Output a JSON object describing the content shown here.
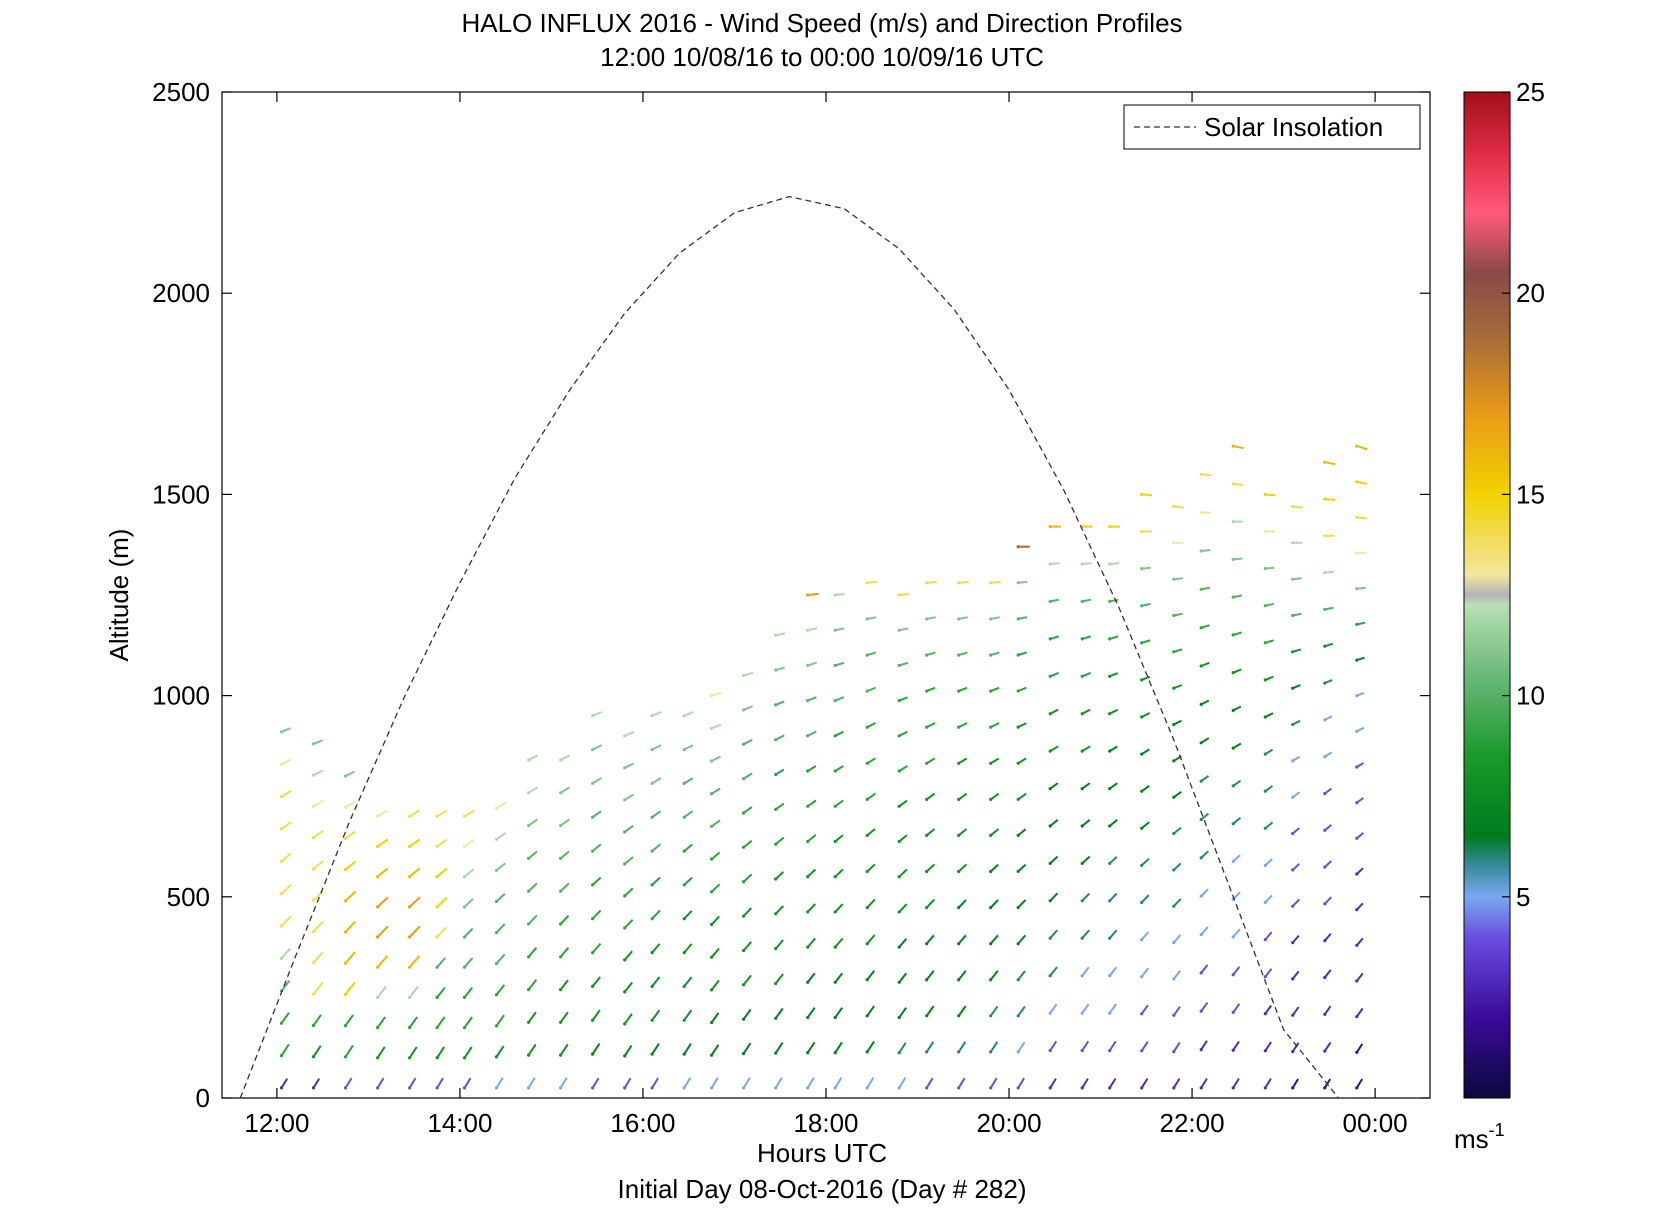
{
  "chart_data": {
    "type": "barb-profile",
    "title": "HALO INFLUX 2016 - Wind Speed (m/s) and Direction Profiles",
    "subtitle": "12:00 10/08/16 to 00:00 10/09/16  UTC",
    "xlabel": "Hours UTC",
    "x_note": "Initial Day 08-Oct-2016 (Day # 282)",
    "ylabel": "Altitude (m)",
    "xlim": [
      11.4,
      24.6
    ],
    "ylim": [
      0,
      2500
    ],
    "x_ticks": [
      12,
      14,
      16,
      18,
      20,
      22,
      24
    ],
    "x_tick_labels": [
      "12:00",
      "14:00",
      "16:00",
      "18:00",
      "20:00",
      "22:00",
      "00:00"
    ],
    "y_ticks": [
      0,
      500,
      1000,
      1500,
      2000,
      2500
    ],
    "y_tick_labels": [
      "0",
      "500",
      "1000",
      "1500",
      "2000",
      "2500"
    ],
    "grid": false,
    "legend": {
      "position": "top-right",
      "entries": [
        "Solar Insolation"
      ]
    },
    "colorbar": {
      "range": [
        0,
        25
      ],
      "ticks": [
        5,
        10,
        15,
        20,
        25
      ],
      "tick_labels": [
        "5",
        "10",
        "15",
        "20",
        "25"
      ],
      "unit_label": "ms",
      "unit_exponent": "-1"
    },
    "solar_insolation": {
      "x": [
        11.6,
        12.2,
        12.8,
        13.4,
        14.0,
        14.6,
        15.2,
        15.8,
        16.4,
        17.0,
        17.6,
        18.2,
        18.8,
        19.4,
        20.0,
        20.6,
        21.2,
        21.8,
        22.4,
        23.0,
        23.6,
        23.8
      ],
      "y": [
        0,
        350,
        690,
        1000,
        1280,
        1540,
        1760,
        1950,
        2100,
        2200,
        2240,
        2210,
        2110,
        1960,
        1760,
        1510,
        1220,
        890,
        530,
        170,
        0,
        0
      ]
    },
    "profiles": [
      {
        "hour": 12.05,
        "top": 910,
        "speeds": [
          3,
          9,
          9,
          10,
          12,
          14,
          14,
          14,
          14,
          14,
          13,
          11
        ]
      },
      {
        "hour": 12.4,
        "top": 880,
        "speeds": [
          3,
          8,
          9,
          14,
          14,
          14,
          14,
          14,
          14,
          13,
          12,
          11
        ]
      },
      {
        "hour": 12.75,
        "top": 800,
        "speeds": [
          4,
          9,
          9,
          15,
          16,
          16,
          16,
          15,
          14,
          13,
          11
        ]
      },
      {
        "hour": 13.1,
        "top": 700,
        "speeds": [
          4,
          8,
          9,
          12,
          16,
          17,
          17,
          16,
          15,
          13
        ]
      },
      {
        "hour": 13.45,
        "top": 700,
        "speeds": [
          4,
          8,
          9,
          12,
          16,
          17,
          17,
          16,
          15,
          14
        ]
      },
      {
        "hour": 13.75,
        "top": 700,
        "speeds": [
          4,
          8,
          9,
          9,
          10,
          14,
          15,
          15,
          14,
          14
        ]
      },
      {
        "hour": 14.05,
        "top": 700,
        "speeds": [
          4,
          8,
          9,
          9,
          10,
          10,
          11,
          12,
          13,
          14
        ]
      },
      {
        "hour": 14.4,
        "top": 720,
        "speeds": [
          5,
          8,
          9,
          9,
          10,
          10,
          10,
          11,
          12,
          13
        ]
      },
      {
        "hour": 14.75,
        "top": 840,
        "speeds": [
          5,
          8,
          8,
          9,
          9,
          10,
          10,
          10,
          11,
          12,
          12
        ]
      },
      {
        "hour": 15.1,
        "top": 840,
        "speeds": [
          5,
          8,
          8,
          8,
          9,
          9,
          10,
          10,
          11,
          11,
          12
        ]
      },
      {
        "hour": 15.45,
        "top": 950,
        "speeds": [
          4,
          7,
          8,
          8,
          9,
          9,
          9,
          10,
          10,
          11,
          11,
          12
        ]
      },
      {
        "hour": 15.8,
        "top": 900,
        "speeds": [
          4,
          7,
          8,
          8,
          8,
          9,
          9,
          10,
          10,
          11,
          11,
          12
        ]
      },
      {
        "hour": 16.1,
        "top": 950,
        "speeds": [
          4,
          7,
          8,
          8,
          8,
          9,
          9,
          10,
          10,
          11,
          11,
          12
        ]
      },
      {
        "hour": 16.45,
        "top": 950,
        "speeds": [
          5,
          7,
          8,
          8,
          8,
          8,
          9,
          9,
          10,
          10,
          11,
          12
        ]
      },
      {
        "hour": 16.75,
        "top": 1000,
        "speeds": [
          5,
          7,
          7,
          8,
          8,
          8,
          9,
          9,
          10,
          10,
          11,
          12,
          13
        ]
      },
      {
        "hour": 17.1,
        "top": 1050,
        "speeds": [
          5,
          7,
          7,
          8,
          8,
          8,
          9,
          9,
          9,
          10,
          10,
          11,
          12
        ]
      },
      {
        "hour": 17.45,
        "top": 1150,
        "speeds": [
          5,
          7,
          7,
          8,
          8,
          8,
          8,
          9,
          9,
          9,
          10,
          10,
          11,
          12
        ]
      },
      {
        "hour": 17.8,
        "top": 1250,
        "speeds": [
          5,
          7,
          7,
          7,
          8,
          8,
          8,
          9,
          9,
          9,
          10,
          10,
          11,
          12,
          17
        ]
      },
      {
        "hour": 18.1,
        "top": 1250,
        "speeds": [
          5,
          7,
          7,
          7,
          8,
          8,
          8,
          8,
          9,
          9,
          9,
          10,
          10,
          11,
          12
        ]
      },
      {
        "hour": 18.45,
        "top": 1280,
        "speeds": [
          5,
          7,
          7,
          7,
          8,
          8,
          8,
          8,
          9,
          9,
          9,
          10,
          10,
          11,
          14
        ]
      },
      {
        "hour": 18.8,
        "top": 1250,
        "speeds": [
          5,
          6,
          7,
          7,
          7,
          8,
          8,
          8,
          8,
          9,
          9,
          9,
          10,
          11,
          14
        ]
      },
      {
        "hour": 19.1,
        "top": 1280,
        "speeds": [
          4,
          6,
          7,
          7,
          7,
          8,
          8,
          8,
          8,
          9,
          9,
          9,
          10,
          11,
          14
        ]
      },
      {
        "hour": 19.45,
        "top": 1280,
        "speeds": [
          4,
          6,
          7,
          7,
          7,
          7,
          8,
          8,
          8,
          8,
          9,
          9,
          10,
          11,
          14
        ]
      },
      {
        "hour": 19.8,
        "top": 1280,
        "speeds": [
          4,
          6,
          6,
          7,
          7,
          7,
          7,
          8,
          8,
          8,
          9,
          9,
          10,
          11,
          14
        ]
      },
      {
        "hour": 20.1,
        "top": 1370,
        "speeds": [
          4,
          5,
          6,
          6,
          7,
          7,
          7,
          7,
          8,
          8,
          8,
          9,
          9,
          10,
          11,
          19
        ]
      },
      {
        "hour": 20.45,
        "top": 1420,
        "speeds": [
          3,
          4,
          5,
          6,
          6,
          7,
          7,
          7,
          7,
          8,
          8,
          9,
          9,
          10,
          12,
          16
        ]
      },
      {
        "hour": 20.8,
        "top": 1420,
        "speeds": [
          3,
          4,
          5,
          5,
          6,
          6,
          7,
          7,
          7,
          8,
          8,
          9,
          9,
          10,
          12,
          15
        ]
      },
      {
        "hour": 21.1,
        "top": 1420,
        "speeds": [
          3,
          4,
          5,
          5,
          6,
          6,
          6,
          7,
          7,
          7,
          8,
          8,
          9,
          10,
          12,
          15
        ]
      },
      {
        "hour": 21.45,
        "top": 1500,
        "speeds": [
          3,
          4,
          4,
          5,
          5,
          6,
          6,
          7,
          7,
          7,
          8,
          8,
          9,
          10,
          11,
          14,
          15
        ]
      },
      {
        "hour": 21.8,
        "top": 1470,
        "speeds": [
          3,
          4,
          4,
          5,
          5,
          6,
          6,
          6,
          7,
          7,
          7,
          8,
          9,
          10,
          11,
          13,
          14
        ]
      },
      {
        "hour": 22.1,
        "top": 1550,
        "speeds": [
          3,
          3,
          4,
          4,
          5,
          5,
          6,
          6,
          6,
          7,
          7,
          8,
          9,
          10,
          11,
          13,
          14
        ]
      },
      {
        "hour": 22.45,
        "top": 1620,
        "speeds": [
          3,
          3,
          4,
          4,
          5,
          5,
          5,
          6,
          6,
          7,
          7,
          8,
          9,
          10,
          11,
          12,
          14,
          16
        ]
      },
      {
        "hour": 22.8,
        "top": 1500,
        "speeds": [
          3,
          3,
          3,
          4,
          4,
          5,
          5,
          6,
          6,
          6,
          7,
          8,
          9,
          10,
          11,
          13,
          15
        ]
      },
      {
        "hour": 23.1,
        "top": 1470,
        "speeds": [
          2,
          3,
          3,
          3,
          3,
          4,
          4,
          4,
          5,
          5,
          6,
          7,
          8,
          10,
          11,
          12,
          14
        ]
      },
      {
        "hour": 23.45,
        "top": 1580,
        "speeds": [
          2,
          3,
          3,
          3,
          3,
          4,
          4,
          4,
          4,
          5,
          5,
          6,
          8,
          10,
          12,
          14,
          15,
          16
        ]
      },
      {
        "hour": 23.8,
        "top": 1620,
        "speeds": [
          2,
          2,
          3,
          3,
          3,
          3,
          3,
          4,
          4,
          4,
          5,
          5,
          7,
          9,
          11,
          13,
          14,
          15,
          16
        ]
      }
    ]
  }
}
